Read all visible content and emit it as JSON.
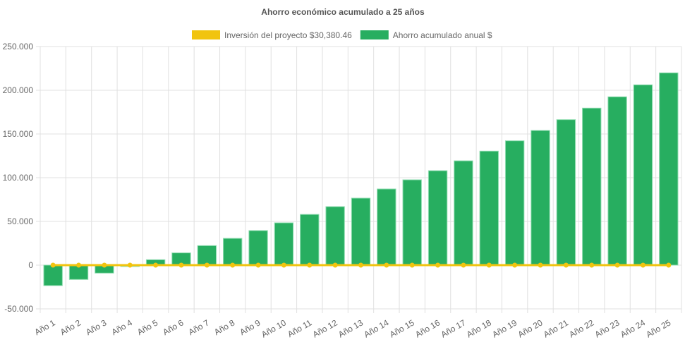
{
  "chart_data": {
    "type": "bar",
    "title": "Ahorro económico acumulado a 25 años",
    "categories": [
      "Año 1",
      "Año 2",
      "Año 3",
      "Año 4",
      "Año 5",
      "Año 6",
      "Año 7",
      "Año 8",
      "Año 9",
      "Año 10",
      "Año 11",
      "Año 12",
      "Año 13",
      "Año 14",
      "Año 15",
      "Año 16",
      "Año 17",
      "Año 18",
      "Año 19",
      "Año 20",
      "Año 21",
      "Año 22",
      "Año 23",
      "Año 24",
      "Año 25"
    ],
    "series": [
      {
        "name": "Inversión del proyecto $30,380.46",
        "type": "line",
        "color": "#f1c40f",
        "values": [
          0,
          0,
          0,
          0,
          0,
          0,
          0,
          0,
          0,
          0,
          0,
          0,
          0,
          0,
          0,
          0,
          0,
          0,
          0,
          0,
          0,
          0,
          0,
          0,
          0
        ]
      },
      {
        "name": "Ahorro acumulado anual $",
        "type": "bar",
        "color": "#27ae60",
        "values": [
          -23400,
          -16400,
          -9100,
          -1600,
          6200,
          14000,
          22300,
          30600,
          39500,
          48400,
          58000,
          66900,
          76600,
          87100,
          97600,
          108000,
          119300,
          130400,
          142200,
          154000,
          166400,
          179600,
          192500,
          206200,
          219900
        ]
      }
    ],
    "ylim": [
      -50000,
      250000
    ],
    "yticks": [
      -50000,
      0,
      50000,
      100000,
      150000,
      200000,
      250000
    ],
    "ytick_labels": [
      "-50.000",
      "0",
      "50.000",
      "100.000",
      "150.000",
      "200.000",
      "250.000"
    ],
    "grid": true,
    "legend": "top"
  }
}
